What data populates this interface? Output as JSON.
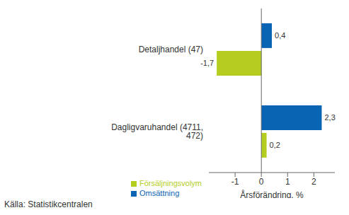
{
  "chart_data": {
    "type": "bar",
    "orientation": "horizontal",
    "categories": [
      "Detaljhandel (47)",
      "Dagligvaruhandel (4711, 472)"
    ],
    "series": [
      {
        "name": "Omsättning",
        "color": "#0a64b4",
        "values": [
          0.4,
          2.3
        ],
        "value_labels": [
          "0,4",
          "2,3"
        ]
      },
      {
        "name": "Försäljningsvolym",
        "color": "#b4cd1e",
        "values": [
          -1.7,
          0.2
        ],
        "value_labels": [
          "-1,7",
          "0,2"
        ]
      }
    ],
    "x_label": "Årsförändring, %",
    "xlim": [
      -2,
      2.8
    ],
    "xticks": [
      -1,
      0,
      1,
      2
    ],
    "grid": false,
    "legend": "bottom",
    "data_labels": true,
    "annotations": [
      "Källa: Statistikcentralen"
    ]
  }
}
